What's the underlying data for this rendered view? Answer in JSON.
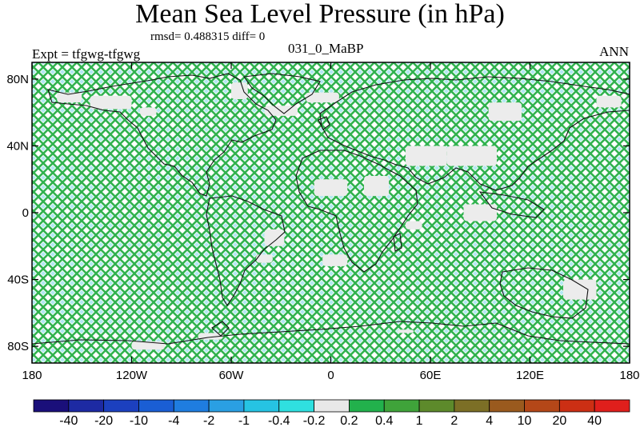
{
  "header": {
    "title": "Mean Sea Level Pressure (in hPa)",
    "stats": "rmsd= 0.488315 diff= 0",
    "experiment": "Expt = tfgwg-tfgwg",
    "period": "031_0_MaBP",
    "season": "ANN"
  },
  "chart_data": {
    "type": "heatmap",
    "title": "Mean Sea Level Pressure (in hPa)",
    "xlabel": "",
    "ylabel": "",
    "xlim": [
      -180,
      180
    ],
    "ylim": [
      -90,
      90
    ],
    "x_ticks": [
      {
        "value": -180,
        "label": "180"
      },
      {
        "value": -120,
        "label": "120W"
      },
      {
        "value": -60,
        "label": "60W"
      },
      {
        "value": 0,
        "label": "0"
      },
      {
        "value": 60,
        "label": "60E"
      },
      {
        "value": 120,
        "label": "120E"
      },
      {
        "value": 180,
        "label": "180"
      }
    ],
    "y_ticks": [
      {
        "value": 80,
        "label": "80N"
      },
      {
        "value": 40,
        "label": "40N"
      },
      {
        "value": 0,
        "label": "0"
      },
      {
        "value": -40,
        "label": "40S"
      },
      {
        "value": -80,
        "label": "80S"
      }
    ],
    "dominant_level": "0.2 to 0.4",
    "near_zero_regions": [
      {
        "lon": [
          -165,
          -150
        ],
        "lat": [
          66,
          72
        ]
      },
      {
        "lon": [
          -145,
          -120
        ],
        "lat": [
          62,
          70
        ]
      },
      {
        "lon": [
          -115,
          -105
        ],
        "lat": [
          58,
          63
        ]
      },
      {
        "lon": [
          -60,
          -50
        ],
        "lat": [
          68,
          78
        ]
      },
      {
        "lon": [
          -15,
          5
        ],
        "lat": [
          66,
          72
        ]
      },
      {
        "lon": [
          -40,
          -20
        ],
        "lat": [
          58,
          64
        ]
      },
      {
        "lon": [
          95,
          115
        ],
        "lat": [
          55,
          66
        ]
      },
      {
        "lon": [
          160,
          175
        ],
        "lat": [
          63,
          70
        ]
      },
      {
        "lon": [
          45,
          70
        ],
        "lat": [
          28,
          40
        ]
      },
      {
        "lon": [
          70,
          100
        ],
        "lat": [
          28,
          40
        ]
      },
      {
        "lon": [
          -10,
          10
        ],
        "lat": [
          10,
          20
        ]
      },
      {
        "lon": [
          20,
          35
        ],
        "lat": [
          10,
          22
        ]
      },
      {
        "lon": [
          -40,
          -28
        ],
        "lat": [
          -10,
          -20
        ]
      },
      {
        "lon": [
          -45,
          -35
        ],
        "lat": [
          -25,
          -30
        ]
      },
      {
        "lon": [
          45,
          55
        ],
        "lat": [
          -5,
          -10
        ]
      },
      {
        "lon": [
          80,
          100
        ],
        "lat": [
          -5,
          5
        ]
      },
      {
        "lon": [
          -5,
          10
        ],
        "lat": [
          -25,
          -32
        ]
      },
      {
        "lon": [
          140,
          160
        ],
        "lat": [
          -40,
          -52
        ]
      },
      {
        "lon": [
          -120,
          -100
        ],
        "lat": [
          -77,
          -82
        ]
      },
      {
        "lon": [
          -80,
          -65
        ],
        "lat": [
          -72,
          -76
        ]
      },
      {
        "lon": [
          40,
          50
        ],
        "lat": [
          -70,
          -72
        ]
      }
    ],
    "legend": {
      "placement": "bottom",
      "boundaries": [
        "-40",
        "-20",
        "-10",
        "-4",
        "-2",
        "-1",
        "-0.4",
        "-0.2",
        "0.2",
        "0.4",
        "1",
        "2",
        "4",
        "10",
        "20",
        "40"
      ],
      "colors": [
        "#1a0f7a",
        "#1d2aa3",
        "#1c40bf",
        "#1a5ed4",
        "#1f7de0",
        "#2a9fe3",
        "#26c3e3",
        "#2fe0e0",
        "#e8e8e8",
        "#22b14c",
        "#3fa33a",
        "#5d8a2b",
        "#7c6f26",
        "#9a5a1e",
        "#b44718",
        "#cc2f14",
        "#e01f1c"
      ]
    }
  },
  "colors": {
    "hatch_green": "#31b24f",
    "hatch_cyan": "#21bcd8",
    "land_outline": "#111111",
    "near_zero_fill": "#ececec"
  }
}
